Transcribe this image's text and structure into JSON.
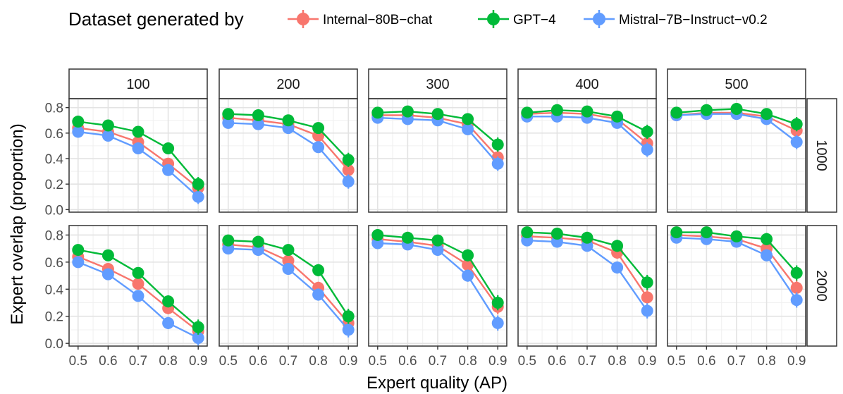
{
  "legend": {
    "title": "Dataset generated by",
    "items": [
      {
        "label": "Internal−80B−chat",
        "color": "#F8766D"
      },
      {
        "label": "GPT−4",
        "color": "#00BA38"
      },
      {
        "label": "Mistral−7B−Instruct−v0.2",
        "color": "#619CFF"
      }
    ]
  },
  "chart_data": {
    "type": "line",
    "xlabel": "Expert quality (AP)",
    "ylabel": "Expert overlap (proportion)",
    "x": [
      0.5,
      0.6,
      0.7,
      0.8,
      0.9
    ],
    "x_tick_labels": [
      "0.5",
      "0.6",
      "0.7",
      "0.8",
      "0.9"
    ],
    "xlim": [
      0.47,
      0.93
    ],
    "ylim": [
      -0.02,
      0.87
    ],
    "y_ticks": [
      0.0,
      0.2,
      0.4,
      0.6,
      0.8
    ],
    "y_tick_labels": [
      "0.0",
      "0.2",
      "0.4",
      "0.6",
      "0.8"
    ],
    "grid": true,
    "legend_position": "top",
    "column_facets": [
      "100",
      "200",
      "300",
      "400",
      "500"
    ],
    "row_facets": [
      "1000",
      "2000"
    ],
    "panels": [
      {
        "row": "1000",
        "col": "100",
        "series": [
          {
            "name": "Internal−80B−chat",
            "values": [
              0.64,
              0.61,
              0.53,
              0.36,
              0.17
            ]
          },
          {
            "name": "GPT−4",
            "values": [
              0.69,
              0.66,
              0.61,
              0.48,
              0.2
            ]
          },
          {
            "name": "Mistral−7B−Instruct−v0.2",
            "values": [
              0.61,
              0.58,
              0.48,
              0.31,
              0.1
            ]
          }
        ]
      },
      {
        "row": "1000",
        "col": "200",
        "series": [
          {
            "name": "Internal−80B−chat",
            "values": [
              0.72,
              0.7,
              0.67,
              0.58,
              0.31
            ]
          },
          {
            "name": "GPT−4",
            "values": [
              0.75,
              0.74,
              0.7,
              0.64,
              0.39
            ]
          },
          {
            "name": "Mistral−7B−Instruct−v0.2",
            "values": [
              0.68,
              0.67,
              0.64,
              0.49,
              0.22
            ]
          }
        ]
      },
      {
        "row": "1000",
        "col": "300",
        "series": [
          {
            "name": "Internal−80B−chat",
            "values": [
              0.74,
              0.74,
              0.72,
              0.67,
              0.41
            ]
          },
          {
            "name": "GPT−4",
            "values": [
              0.76,
              0.77,
              0.75,
              0.71,
              0.51
            ]
          },
          {
            "name": "Mistral−7B−Instruct−v0.2",
            "values": [
              0.72,
              0.71,
              0.7,
              0.63,
              0.36
            ]
          }
        ]
      },
      {
        "row": "1000",
        "col": "400",
        "series": [
          {
            "name": "Internal−80B−chat",
            "values": [
              0.75,
              0.76,
              0.75,
              0.71,
              0.52
            ]
          },
          {
            "name": "GPT−4",
            "values": [
              0.76,
              0.78,
              0.77,
              0.73,
              0.61
            ]
          },
          {
            "name": "Mistral−7B−Instruct−v0.2",
            "values": [
              0.73,
              0.73,
              0.72,
              0.68,
              0.47
            ]
          }
        ]
      },
      {
        "row": "1000",
        "col": "500",
        "series": [
          {
            "name": "Internal−80B−chat",
            "values": [
              0.74,
              0.76,
              0.76,
              0.73,
              0.62
            ]
          },
          {
            "name": "GPT−4",
            "values": [
              0.76,
              0.78,
              0.79,
              0.75,
              0.67
            ]
          },
          {
            "name": "Mistral−7B−Instruct−v0.2",
            "values": [
              0.74,
              0.75,
              0.75,
              0.71,
              0.53
            ]
          }
        ]
      },
      {
        "row": "2000",
        "col": "100",
        "series": [
          {
            "name": "Internal−80B−chat",
            "values": [
              0.64,
              0.55,
              0.44,
              0.26,
              0.09
            ]
          },
          {
            "name": "GPT−4",
            "values": [
              0.69,
              0.65,
              0.52,
              0.31,
              0.12
            ]
          },
          {
            "name": "Mistral−7B−Instruct−v0.2",
            "values": [
              0.6,
              0.51,
              0.35,
              0.15,
              0.04
            ]
          }
        ]
      },
      {
        "row": "2000",
        "col": "200",
        "series": [
          {
            "name": "Internal−80B−chat",
            "values": [
              0.73,
              0.71,
              0.61,
              0.41,
              0.15
            ]
          },
          {
            "name": "GPT−4",
            "values": [
              0.76,
              0.75,
              0.69,
              0.54,
              0.2
            ]
          },
          {
            "name": "Mistral−7B−Instruct−v0.2",
            "values": [
              0.7,
              0.69,
              0.55,
              0.36,
              0.1
            ]
          }
        ]
      },
      {
        "row": "2000",
        "col": "300",
        "series": [
          {
            "name": "Internal−80B−chat",
            "values": [
              0.77,
              0.75,
              0.72,
              0.58,
              0.27
            ]
          },
          {
            "name": "GPT−4",
            "values": [
              0.8,
              0.78,
              0.76,
              0.65,
              0.3
            ]
          },
          {
            "name": "Mistral−7B−Instruct−v0.2",
            "values": [
              0.74,
              0.73,
              0.69,
              0.5,
              0.15
            ]
          }
        ]
      },
      {
        "row": "2000",
        "col": "400",
        "series": [
          {
            "name": "Internal−80B−chat",
            "values": [
              0.79,
              0.78,
              0.76,
              0.67,
              0.34
            ]
          },
          {
            "name": "GPT−4",
            "values": [
              0.82,
              0.81,
              0.78,
              0.72,
              0.45
            ]
          },
          {
            "name": "Mistral−7B−Instruct−v0.2",
            "values": [
              0.76,
              0.75,
              0.72,
              0.56,
              0.24
            ]
          }
        ]
      },
      {
        "row": "2000",
        "col": "500",
        "series": [
          {
            "name": "Internal−80B−chat",
            "values": [
              0.8,
              0.79,
              0.77,
              0.7,
              0.41
            ]
          },
          {
            "name": "GPT−4",
            "values": [
              0.82,
              0.82,
              0.79,
              0.77,
              0.52
            ]
          },
          {
            "name": "Mistral−7B−Instruct−v0.2",
            "values": [
              0.78,
              0.77,
              0.75,
              0.65,
              0.32
            ]
          }
        ]
      }
    ]
  }
}
